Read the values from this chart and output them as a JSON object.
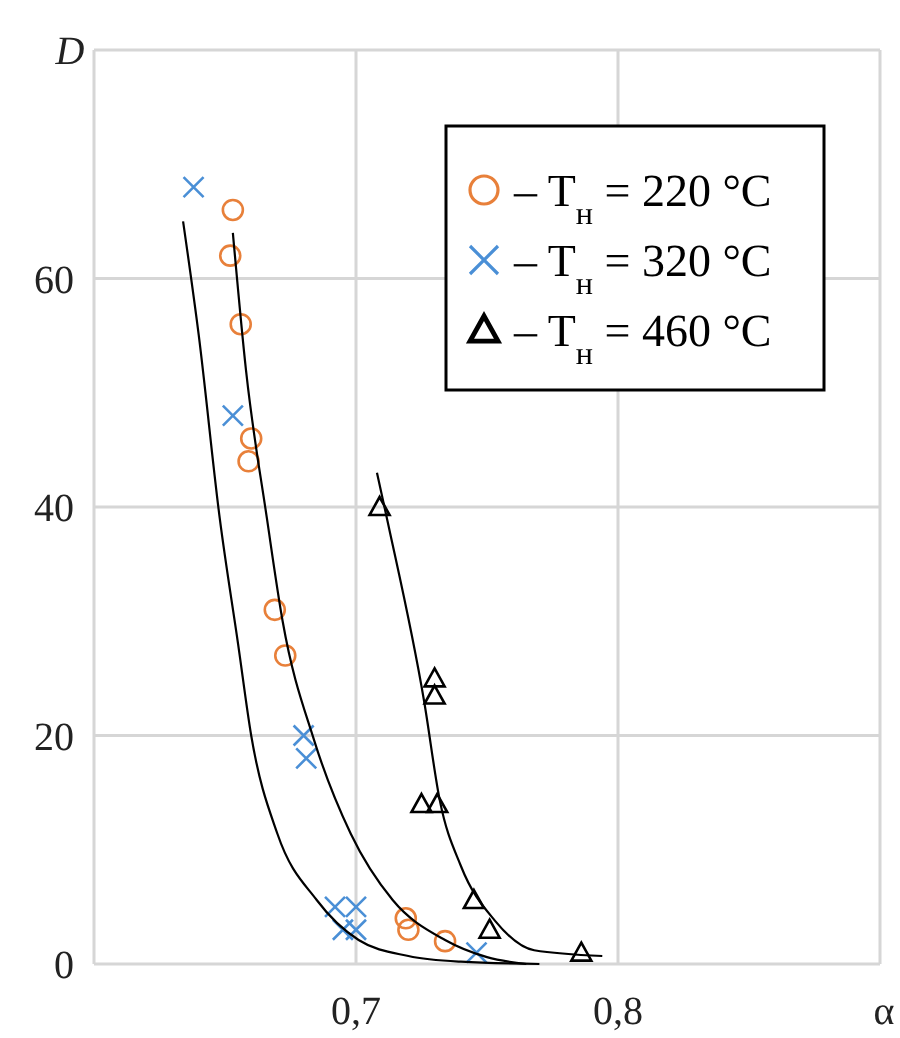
{
  "chart_data": {
    "type": "scatter",
    "xlabel": "α",
    "ylabel": "D",
    "xlim": [
      0.6,
      0.9
    ],
    "ylim": [
      0,
      80
    ],
    "xticks": [
      {
        "value": 0.6,
        "label": null
      },
      {
        "value": 0.7,
        "label": "0,7"
      },
      {
        "value": 0.8,
        "label": "0,8"
      },
      {
        "value": 0.9,
        "label": null
      }
    ],
    "yticks": [
      0,
      20,
      40,
      60,
      {
        "value": 80,
        "label": null
      }
    ],
    "grid": true,
    "legend": "top right",
    "series": [
      {
        "name": "– T$_{н}$ = 220 °C",
        "color": "#e8803a",
        "marker": "circle",
        "x": [
          0.653,
          0.652,
          0.656,
          0.66,
          0.659,
          0.669,
          0.673,
          0.719,
          0.72,
          0.734
        ],
        "values": [
          66,
          62,
          56,
          46,
          44,
          31,
          27,
          4,
          3,
          2
        ]
      },
      {
        "name": "– T$_{н}$ = 320 °C",
        "color": "#4a8fd6",
        "marker": "cross",
        "x": [
          0.638,
          0.653,
          0.68,
          0.681,
          0.692,
          0.7,
          0.695,
          0.7,
          0.746
        ],
        "values": [
          68,
          48,
          20,
          18,
          5,
          5,
          3,
          3,
          1
        ]
      },
      {
        "name": "– T$_{н}$ = 460 °C",
        "color": "#000000",
        "marker": "triangle",
        "x": [
          0.709,
          0.73,
          0.73,
          0.725,
          0.731,
          0.745,
          0.751,
          0.786
        ],
        "values": [
          40,
          25,
          23.5,
          14,
          14,
          5.6,
          3,
          1
        ]
      },
      {
        "type": "line",
        "color": "#000000",
        "marker": "none",
        "x": [
          0.634,
          0.64,
          0.648,
          0.655,
          0.66,
          0.67,
          0.685,
          0.701,
          0.72,
          0.74,
          0.77
        ],
        "values": [
          65,
          55,
          39,
          28,
          20,
          11.4,
          5.6,
          2.1,
          0.7,
          0.2,
          0
        ]
      },
      {
        "type": "line",
        "color": "#000000",
        "marker": "none",
        "x": [
          0.653,
          0.658,
          0.666,
          0.672,
          0.684,
          0.698,
          0.714,
          0.734,
          0.75,
          0.765
        ],
        "values": [
          64,
          52,
          39,
          30,
          19.6,
          11.4,
          5.6,
          2.1,
          0.6,
          0
        ]
      },
      {
        "type": "line",
        "color": "#000000",
        "marker": "none",
        "x": [
          0.708,
          0.712,
          0.726,
          0.732,
          0.74,
          0.753,
          0.768,
          0.794
        ],
        "values": [
          43,
          38.8,
          23,
          14.3,
          8.6,
          3.8,
          1.2,
          0.7
        ]
      }
    ]
  }
}
